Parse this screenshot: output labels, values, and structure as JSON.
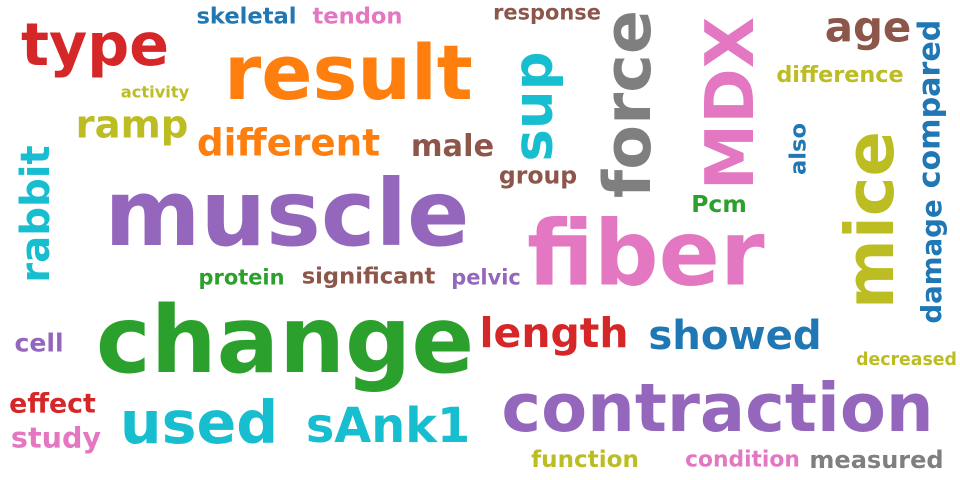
{
  "colors": {
    "red": "#d62728",
    "orange": "#ff7f0e",
    "purple": "#9467bd",
    "green": "#2ca02c",
    "cyan": "#17becf",
    "pink": "#e377c2",
    "brown": "#8c564b",
    "olive": "#bcbd22",
    "blue": "#1f77b4",
    "gray": "#7f7f7f"
  },
  "words": [
    {
      "text": "type",
      "color": "red"
    },
    {
      "text": "skeletal",
      "color": "blue"
    },
    {
      "text": "tendon",
      "color": "pink"
    },
    {
      "text": "response",
      "color": "brown"
    },
    {
      "text": "result",
      "color": "orange"
    },
    {
      "text": "force",
      "color": "gray"
    },
    {
      "text": "MDX",
      "color": "pink"
    },
    {
      "text": "age",
      "color": "brown"
    },
    {
      "text": "compared",
      "color": "blue"
    },
    {
      "text": "difference",
      "color": "olive"
    },
    {
      "text": "activity",
      "color": "olive"
    },
    {
      "text": "ramp",
      "color": "olive"
    },
    {
      "text": "sup",
      "color": "cyan"
    },
    {
      "text": "rabbit",
      "color": "cyan"
    },
    {
      "text": "different",
      "color": "orange"
    },
    {
      "text": "male",
      "color": "brown"
    },
    {
      "text": "group",
      "color": "brown"
    },
    {
      "text": "also",
      "color": "blue"
    },
    {
      "text": "mice",
      "color": "olive"
    },
    {
      "text": "damage",
      "color": "blue"
    },
    {
      "text": "muscle",
      "color": "purple"
    },
    {
      "text": "Pcm",
      "color": "green"
    },
    {
      "text": "fiber",
      "color": "pink"
    },
    {
      "text": "protein",
      "color": "green"
    },
    {
      "text": "significant",
      "color": "brown"
    },
    {
      "text": "pelvic",
      "color": "purple"
    },
    {
      "text": "cell",
      "color": "purple"
    },
    {
      "text": "change",
      "color": "green"
    },
    {
      "text": "length",
      "color": "red"
    },
    {
      "text": "showed",
      "color": "blue"
    },
    {
      "text": "decreased",
      "color": "olive"
    },
    {
      "text": "effect",
      "color": "red"
    },
    {
      "text": "study",
      "color": "pink"
    },
    {
      "text": "used",
      "color": "cyan"
    },
    {
      "text": "sAnk1",
      "color": "cyan"
    },
    {
      "text": "contraction",
      "color": "purple"
    },
    {
      "text": "function",
      "color": "olive"
    },
    {
      "text": "condition",
      "color": "pink"
    },
    {
      "text": "measured",
      "color": "gray"
    }
  ]
}
